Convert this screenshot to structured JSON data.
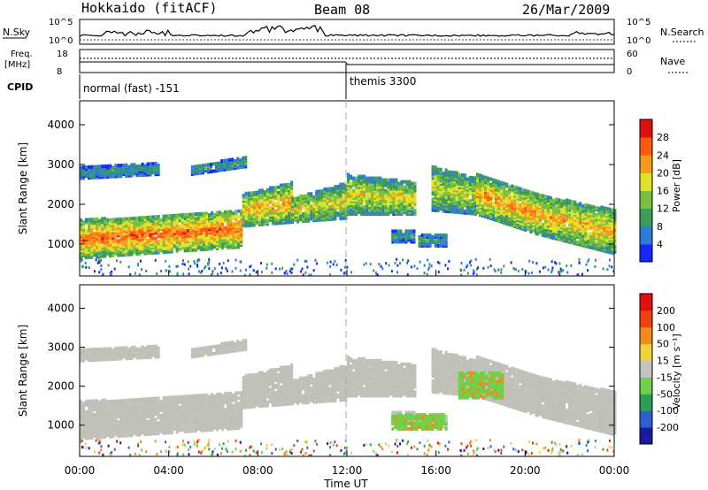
{
  "header": {
    "station": "Hokkaido (fitACF)",
    "beam": "Beam 08",
    "date": "26/Mar/2009"
  },
  "top_panels": {
    "nsky_label": "N.Sky",
    "nsky_top": "10^5",
    "nsky_bottom": "10^0",
    "nsearch_label": "N.Search",
    "nsearch_top": "10^5",
    "nsearch_bottom": "10^0",
    "freq_label": "Freq.",
    "freq_unit": "[MHz]",
    "freq_top": "18",
    "freq_bottom": "8",
    "nave_label": "Nave",
    "nave_top": "60",
    "nave_bottom": "0",
    "cpid_label": "CPID",
    "cpid_1": "normal (fast) -151",
    "cpid_2": "themis 3300"
  },
  "chart_data": [
    {
      "type": "heatmap",
      "name": "power",
      "ylabel": "Slant Range [km]",
      "yticks": [
        1000,
        2000,
        3000,
        4000
      ],
      "ylim": [
        200,
        4600
      ],
      "xlim": [
        0,
        24
      ],
      "colorbar_label": "Power [dB]",
      "colorbar_ticks": [
        "4",
        "8",
        "12",
        "16",
        "20",
        "24",
        "28"
      ],
      "colorbar_colors": [
        "#1428ff",
        "#2a7cd6",
        "#3c9b58",
        "#77c03e",
        "#e1e12a",
        "#f59a1c",
        "#ff5a10",
        "#e01010"
      ],
      "bands": [
        {
          "t0": 0.0,
          "t1": 7.3,
          "r0": 700,
          "r1": 1650,
          "r0e": 980,
          "r1e": 1900,
          "level": 0.85
        },
        {
          "t0": 7.3,
          "t1": 9.5,
          "r0": 1500,
          "r1": 2300,
          "r0e": 1600,
          "r1e": 2600,
          "level": 0.7
        },
        {
          "t0": 9.5,
          "t1": 12.0,
          "r0": 1600,
          "r1": 2200,
          "r0e": 1700,
          "r1e": 2600,
          "level": 0.6
        },
        {
          "t0": 12.0,
          "t1": 15.0,
          "r0": 1800,
          "r1": 2800,
          "r0e": 1800,
          "r1e": 2600,
          "level": 0.6
        },
        {
          "t0": 15.8,
          "t1": 17.8,
          "r0": 1900,
          "r1": 3000,
          "r0e": 1800,
          "r1e": 2700,
          "level": 0.55
        },
        {
          "t0": 17.8,
          "t1": 20.5,
          "r0": 1800,
          "r1": 2800,
          "r0e": 1300,
          "r1e": 2300,
          "level": 0.75
        },
        {
          "t0": 20.5,
          "t1": 24.0,
          "r0": 1300,
          "r1": 2300,
          "r0e": 800,
          "r1e": 1900,
          "level": 0.7
        },
        {
          "t0": 0.0,
          "t1": 3.5,
          "r0": 2700,
          "r1": 3000,
          "r0e": 2800,
          "r1e": 3100,
          "level": 0.25
        },
        {
          "t0": 5.0,
          "t1": 7.5,
          "r0": 2800,
          "r1": 3000,
          "r0e": 3000,
          "r1e": 3250,
          "level": 0.3
        },
        {
          "t0": 14.0,
          "t1": 15.0,
          "r0": 1100,
          "r1": 1400,
          "r0e": 1100,
          "r1e": 1400,
          "level": 0.3
        },
        {
          "t0": 15.2,
          "t1": 16.5,
          "r0": 1000,
          "r1": 1300,
          "r0e": 1000,
          "r1e": 1300,
          "level": 0.3
        }
      ]
    },
    {
      "type": "heatmap",
      "name": "velocity",
      "ylabel": "Slant Range [km]",
      "yticks": [
        1000,
        2000,
        3000,
        4000
      ],
      "ylim": [
        200,
        4600
      ],
      "xlim": [
        0,
        24
      ],
      "xticks": [
        "00:00",
        "04:00",
        "08:00",
        "12:00",
        "16:00",
        "20:00",
        "00:00"
      ],
      "xlabel": "Time UT",
      "colorbar_label": "Velocity [m s⁻¹]",
      "colorbar_ticks": [
        "200",
        "100",
        "50",
        "15",
        "-15",
        "-50",
        "-100",
        "-200"
      ],
      "colorbar_colors": [
        "#1a1aa0",
        "#2e5ed0",
        "#2c9d55",
        "#6fd148",
        "#c3c3c3",
        "#f0d23a",
        "#f08a1c",
        "#f04010",
        "#e01010"
      ],
      "gray_color": "#c0c0b8",
      "green_patches": [
        {
          "t0": 14.0,
          "t1": 16.5,
          "r0": 950,
          "r1": 1350
        },
        {
          "t0": 17.0,
          "t1": 19.0,
          "r0": 1750,
          "r1": 2400
        }
      ]
    }
  ]
}
